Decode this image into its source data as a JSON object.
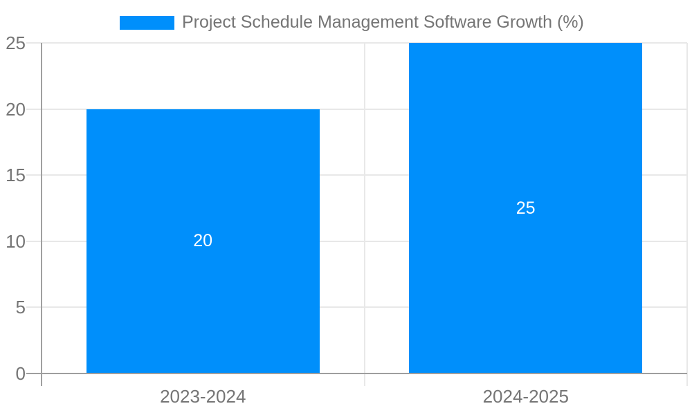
{
  "chart_data": {
    "type": "bar",
    "title": "Project Schedule Management Software Growth (%)",
    "categories": [
      "2023-2024",
      "2024-2025"
    ],
    "series": [
      {
        "name": "Project Schedule Management Software Growth (%)",
        "values": [
          20,
          25
        ]
      }
    ],
    "data_labels": [
      "20",
      "25"
    ],
    "xlabel": "",
    "ylabel": "",
    "ylim": [
      0,
      25
    ],
    "yticks": [
      0,
      5,
      10,
      15,
      20,
      25
    ],
    "grid": true,
    "legend_position": "top",
    "colors": {
      "bar": "#008FFB",
      "bar_label_text": "#FFFFFF",
      "axis_text": "#757575",
      "gridline": "#E8E8E8",
      "tick_line": "#D9D9D9",
      "axis_line": "#A0A0A0",
      "baseline": "#9E9E9E",
      "background": "#FFFFFF"
    }
  }
}
